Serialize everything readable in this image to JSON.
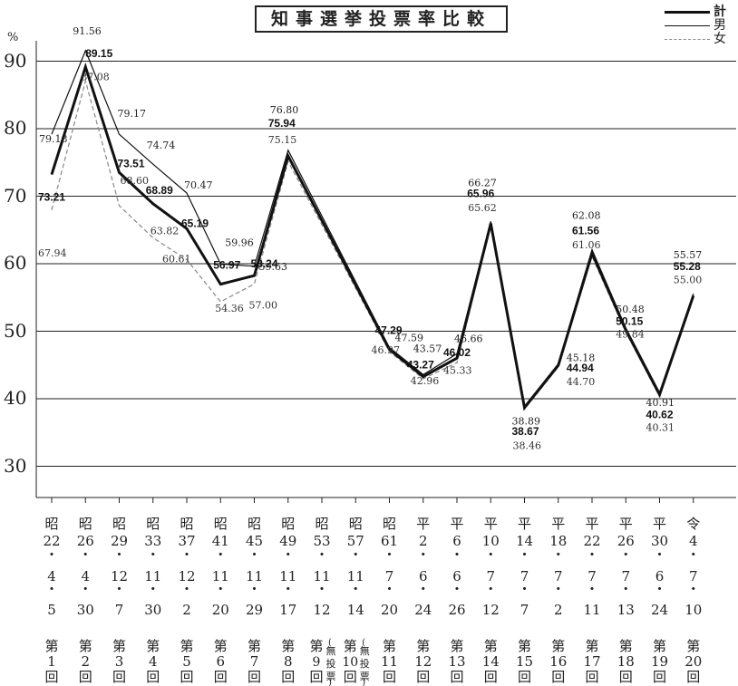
{
  "title": "知事選挙投票率比較",
  "legend": [
    {
      "key": "total",
      "label": "計"
    },
    {
      "key": "male",
      "label": "男"
    },
    {
      "key": "female",
      "label": "女"
    }
  ],
  "colors": {
    "total": "#111111",
    "male": "#111111",
    "female": "#888888",
    "grid": "#222222"
  },
  "chart_data": {
    "type": "line",
    "ylabel": "%",
    "ylim": [
      25,
      95
    ],
    "yticks": [
      30,
      40,
      50,
      60,
      70,
      80,
      90
    ],
    "grid": true,
    "legend_position": "top-right",
    "x_groups": [
      {
        "era": "昭",
        "year": "22",
        "month": "4",
        "day": "5",
        "no": [
          "第",
          "1",
          "回"
        ]
      },
      {
        "era": "昭",
        "year": "26",
        "month": "4",
        "day": "30",
        "no": [
          "第",
          "2",
          "回"
        ]
      },
      {
        "era": "昭",
        "year": "29",
        "month": "12",
        "day": "7",
        "no": [
          "第",
          "3",
          "回"
        ]
      },
      {
        "era": "昭",
        "year": "33",
        "month": "11",
        "day": "30",
        "no": [
          "第",
          "4",
          "回"
        ]
      },
      {
        "era": "昭",
        "year": "37",
        "month": "12",
        "day": "2",
        "no": [
          "第",
          "5",
          "回"
        ]
      },
      {
        "era": "昭",
        "year": "41",
        "month": "11",
        "day": "20",
        "no": [
          "第",
          "6",
          "回"
        ]
      },
      {
        "era": "昭",
        "year": "45",
        "month": "11",
        "day": "29",
        "no": [
          "第",
          "7",
          "回"
        ]
      },
      {
        "era": "昭",
        "year": "49",
        "month": "11",
        "day": "17",
        "no": [
          "第",
          "8",
          "回"
        ]
      },
      {
        "era": "昭",
        "year": "53",
        "month": "11",
        "day": "12",
        "no": [
          "第",
          "9",
          "回"
        ],
        "note": "無投票"
      },
      {
        "era": "昭",
        "year": "57",
        "month": "11",
        "day": "14",
        "no": [
          "第",
          "10",
          "回"
        ],
        "note": "無投票"
      },
      {
        "era": "昭",
        "year": "61",
        "month": "7",
        "day": "20",
        "no": [
          "第",
          "11",
          "回"
        ]
      },
      {
        "era": "平",
        "year": "2",
        "month": "6",
        "day": "24",
        "no": [
          "第",
          "12",
          "回"
        ]
      },
      {
        "era": "平",
        "year": "6",
        "month": "6",
        "day": "26",
        "no": [
          "第",
          "13",
          "回"
        ]
      },
      {
        "era": "平",
        "year": "10",
        "month": "7",
        "day": "12",
        "no": [
          "第",
          "14",
          "回"
        ]
      },
      {
        "era": "平",
        "year": "14",
        "month": "7",
        "day": "7",
        "no": [
          "第",
          "15",
          "回"
        ]
      },
      {
        "era": "平",
        "year": "18",
        "month": "7",
        "day": "2",
        "no": [
          "第",
          "16",
          "回"
        ]
      },
      {
        "era": "平",
        "year": "22",
        "month": "7",
        "day": "11",
        "no": [
          "第",
          "17",
          "回"
        ]
      },
      {
        "era": "平",
        "year": "26",
        "month": "7",
        "day": "13",
        "no": [
          "第",
          "18",
          "回"
        ]
      },
      {
        "era": "平",
        "year": "30",
        "month": "6",
        "day": "24",
        "no": [
          "第",
          "19",
          "回"
        ]
      },
      {
        "era": "令",
        "year": "4",
        "month": "7",
        "day": "10",
        "no": [
          "第",
          "20",
          "回"
        ]
      }
    ],
    "series": [
      {
        "name": "計",
        "key": "total",
        "values": [
          73.21,
          89.15,
          73.51,
          68.89,
          65.19,
          56.97,
          58.24,
          75.94,
          null,
          null,
          47.29,
          43.27,
          46.02,
          65.96,
          38.67,
          44.94,
          61.56,
          50.15,
          40.62,
          55.28
        ]
      },
      {
        "name": "男",
        "key": "male",
        "values": [
          79.18,
          91.56,
          79.17,
          74.74,
          70.47,
          59.96,
          59.63,
          76.8,
          null,
          null,
          47.59,
          43.57,
          46.66,
          66.27,
          38.89,
          45.18,
          62.08,
          50.48,
          40.91,
          55.57
        ]
      },
      {
        "name": "女",
        "key": "female",
        "values": [
          67.94,
          87.08,
          68.6,
          63.82,
          60.61,
          54.36,
          57.0,
          75.15,
          null,
          null,
          46.97,
          42.96,
          45.33,
          65.62,
          38.46,
          44.7,
          61.06,
          49.84,
          40.31,
          55.0
        ]
      }
    ]
  }
}
